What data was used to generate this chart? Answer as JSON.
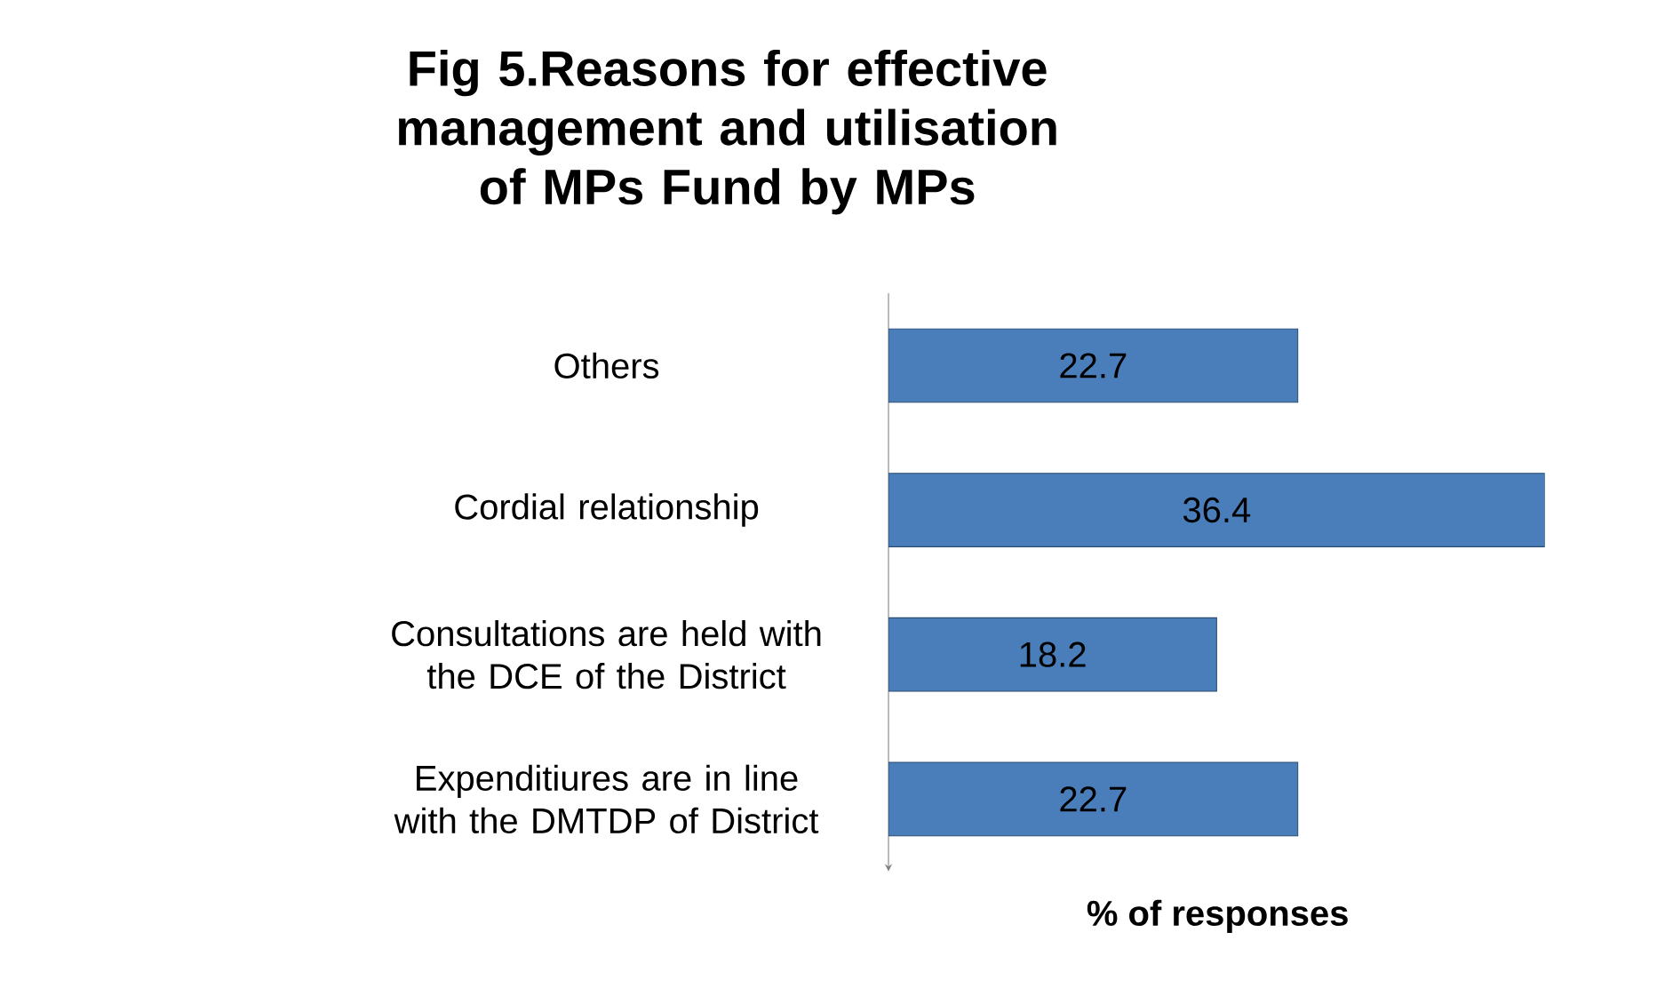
{
  "chart_data": {
    "type": "bar",
    "orientation": "horizontal",
    "title": "Fig 5.Reasons for effective management and utilisation of MPs Fund by MPs",
    "xlabel": "% of responses",
    "categories": [
      "Others",
      "Cordial relationship",
      "Consultations are held with the DCE of the District",
      "Expenditiures are in line with the DMTDP of District"
    ],
    "values": [
      22.7,
      36.4,
      18.2,
      22.7
    ],
    "color": "#4a7ebb",
    "data_labels": true
  }
}
